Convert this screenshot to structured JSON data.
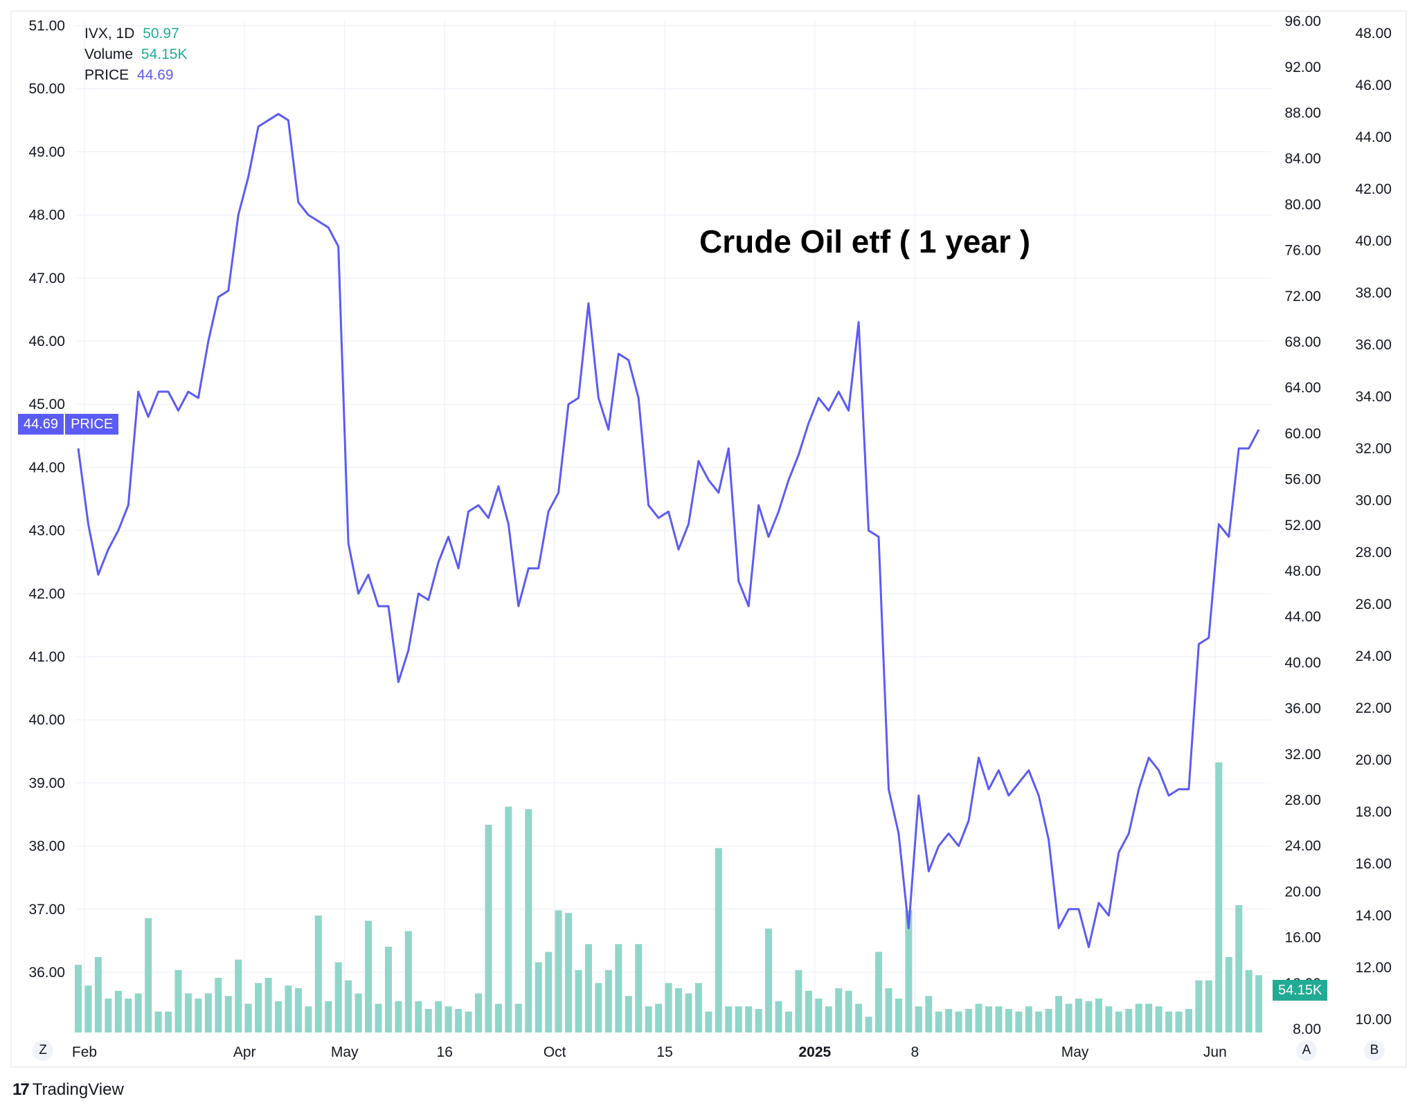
{
  "legend": {
    "symbol": "IVX, 1D",
    "symbol_value": "50.97",
    "volume_label": "Volume",
    "volume_value": "54.15K",
    "price_label": "PRICE",
    "price_value": "44.69"
  },
  "price_tag": {
    "value": "44.69",
    "label": "PRICE"
  },
  "volume_tag": "54.15K",
  "scale_buttons": {
    "z": "Z",
    "a": "A",
    "b": "B"
  },
  "brand": {
    "logo": "17",
    "name": "TradingView"
  },
  "colors": {
    "price_line": "#5b5bf6",
    "volume_bar": "#8fd6c8",
    "grid": "#f0f3fa",
    "text": "#131722",
    "volume_tag": "#22ab94",
    "price_tag": "#5b5bf6"
  },
  "chart_data": {
    "type": "line",
    "title": "Crude Oil etf ( 1 year )",
    "left_axis": {
      "ylim": [
        35.0,
        51.2
      ],
      "ticks": [
        "36.00",
        "37.00",
        "38.00",
        "39.00",
        "40.00",
        "41.00",
        "42.00",
        "43.00",
        "44.00",
        "45.00",
        "46.00",
        "47.00",
        "48.00",
        "49.00",
        "50.00",
        "51.00"
      ]
    },
    "right_axis_1": {
      "ylim": [
        7.8,
        96.0
      ],
      "ticks": [
        "8.00",
        "12.00",
        "16.00",
        "20.00",
        "24.00",
        "28.00",
        "32.00",
        "36.00",
        "40.00",
        "44.00",
        "48.00",
        "52.00",
        "56.00",
        "60.00",
        "64.00",
        "68.00",
        "72.00",
        "76.00",
        "80.00",
        "84.00",
        "88.00",
        "92.00",
        "96.00"
      ]
    },
    "right_axis_2": {
      "ylim": [
        9.8,
        48.5
      ],
      "ticks": [
        "10.00",
        "12.00",
        "14.00",
        "16.00",
        "18.00",
        "20.00",
        "22.00",
        "24.00",
        "26.00",
        "28.00",
        "30.00",
        "32.00",
        "34.00",
        "36.00",
        "38.00",
        "40.00",
        "42.00",
        "44.00",
        "46.00",
        "48.00"
      ]
    },
    "x_tick_labels": [
      {
        "label": "Feb",
        "index": 0,
        "bold": false
      },
      {
        "label": "Apr",
        "index": 16,
        "bold": false
      },
      {
        "label": "May",
        "index": 26,
        "bold": false
      },
      {
        "label": "16",
        "index": 36,
        "bold": false
      },
      {
        "label": "Oct",
        "index": 47,
        "bold": false
      },
      {
        "label": "15",
        "index": 58,
        "bold": false
      },
      {
        "label": "2025",
        "index": 73,
        "bold": true
      },
      {
        "label": "8",
        "index": 83,
        "bold": false
      },
      {
        "label": "May",
        "index": 99,
        "bold": false
      },
      {
        "label": "Jun",
        "index": 113,
        "bold": false
      }
    ],
    "series": [
      {
        "name": "PRICE",
        "axis": "left",
        "values": [
          44.3,
          43.1,
          42.3,
          42.7,
          43.0,
          43.4,
          45.2,
          44.8,
          45.2,
          45.2,
          44.9,
          45.2,
          45.1,
          46.0,
          46.7,
          46.8,
          48.0,
          48.6,
          49.4,
          49.5,
          49.6,
          49.5,
          48.2,
          48.0,
          47.9,
          47.8,
          47.5,
          42.8,
          42.0,
          42.3,
          41.8,
          41.8,
          40.6,
          41.1,
          42.0,
          41.9,
          42.5,
          42.9,
          42.4,
          43.3,
          43.4,
          43.2,
          43.7,
          43.1,
          41.8,
          42.4,
          42.4,
          43.3,
          43.6,
          45.0,
          45.1,
          46.6,
          45.1,
          44.6,
          45.8,
          45.7,
          45.1,
          43.4,
          43.2,
          43.3,
          42.7,
          43.1,
          44.1,
          43.8,
          43.6,
          44.3,
          42.2,
          41.8,
          43.4,
          42.9,
          43.3,
          43.8,
          44.2,
          44.7,
          45.1,
          44.9,
          45.2,
          44.9,
          46.3,
          43.0,
          42.9,
          38.9,
          38.2,
          36.7,
          38.8,
          37.6,
          38.0,
          38.2,
          38.0,
          38.4,
          39.4,
          38.9,
          39.2,
          38.8,
          39.0,
          39.2,
          38.8,
          38.1,
          36.7,
          37.0,
          37.0,
          36.4,
          37.1,
          36.9,
          37.9,
          38.2,
          38.9,
          39.4,
          39.2,
          38.8,
          38.9,
          38.9,
          41.2,
          41.3,
          43.1,
          42.9,
          44.3,
          44.3,
          44.6
        ]
      },
      {
        "name": "Volume",
        "axis": "right_2",
        "values": [
          12.1,
          11.3,
          12.4,
          10.8,
          11.1,
          10.8,
          11.0,
          13.9,
          10.3,
          10.3,
          11.9,
          11.0,
          10.8,
          11.0,
          11.6,
          10.9,
          12.3,
          10.6,
          11.4,
          11.6,
          10.7,
          11.3,
          11.2,
          10.5,
          14.0,
          10.7,
          12.2,
          11.5,
          11.0,
          13.8,
          10.6,
          12.8,
          10.7,
          13.4,
          10.7,
          10.4,
          10.7,
          10.5,
          10.4,
          10.3,
          11.0,
          17.5,
          10.6,
          18.2,
          10.6,
          18.1,
          12.2,
          12.6,
          14.2,
          14.1,
          11.9,
          12.9,
          11.4,
          11.9,
          12.9,
          10.9,
          12.9,
          10.5,
          10.6,
          11.4,
          11.2,
          11.0,
          11.4,
          10.3,
          16.6,
          10.5,
          10.5,
          10.5,
          10.4,
          13.5,
          10.7,
          10.3,
          11.9,
          11.1,
          10.8,
          10.5,
          11.2,
          11.1,
          10.6,
          10.1,
          12.6,
          11.2,
          10.8,
          14.2,
          10.5,
          10.9,
          10.3,
          10.4,
          10.3,
          10.4,
          10.6,
          10.5,
          10.5,
          10.4,
          10.3,
          10.5,
          10.3,
          10.4,
          10.9,
          10.6,
          10.8,
          10.7,
          10.8,
          10.5,
          10.3,
          10.4,
          10.6,
          10.6,
          10.5,
          10.3,
          10.3,
          10.4,
          11.5,
          11.5,
          19.9,
          12.4,
          14.4,
          11.9,
          11.7
        ]
      }
    ],
    "grid": true
  }
}
